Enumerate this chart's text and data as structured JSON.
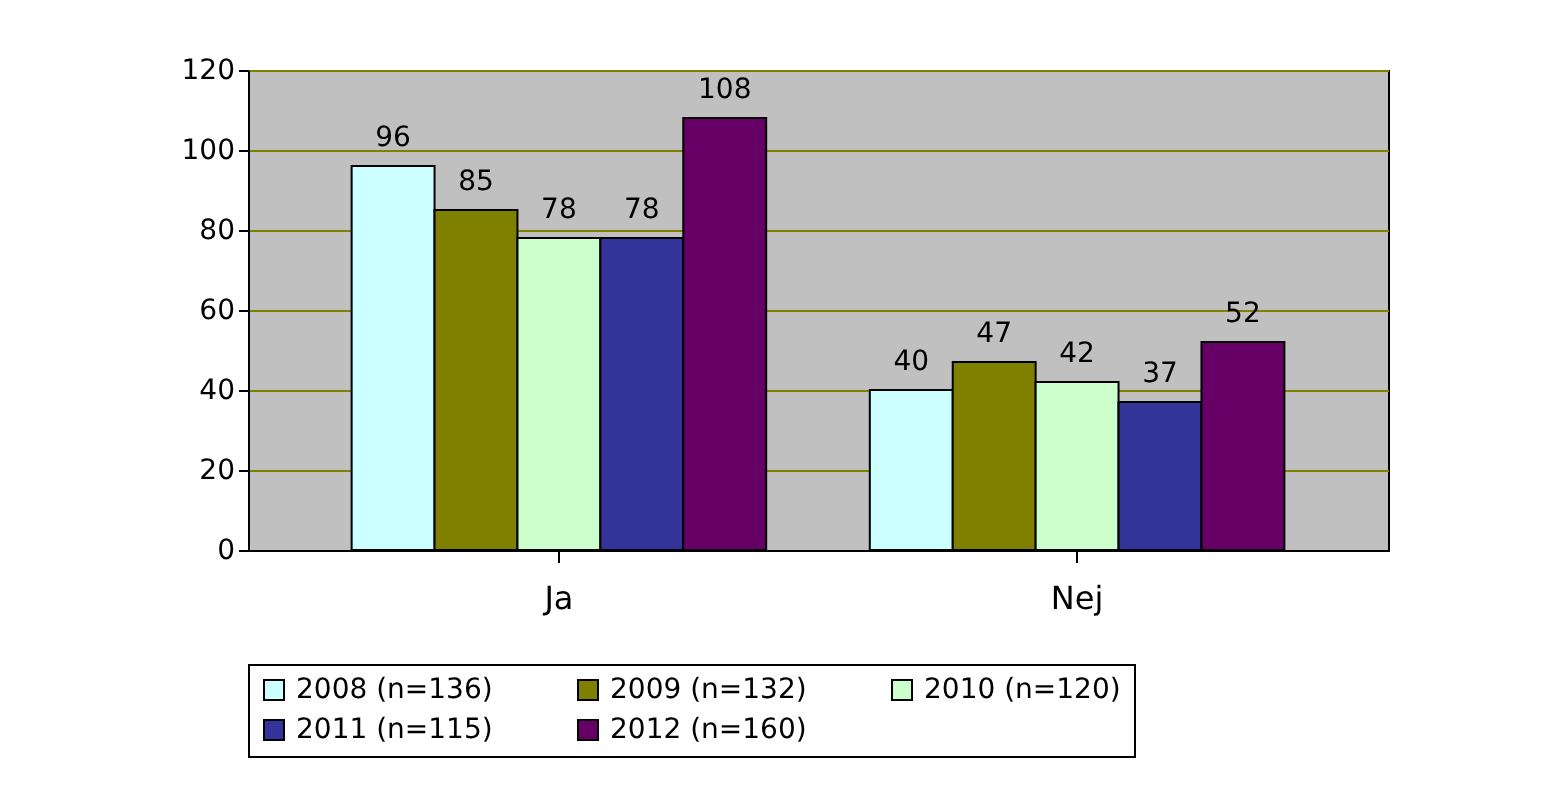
{
  "chart_data": {
    "type": "bar",
    "categories": [
      "Ja",
      "Nej"
    ],
    "series": [
      {
        "name": "2008 (n=136)",
        "color": "#ccffff",
        "values": [
          96,
          40
        ]
      },
      {
        "name": "2009 (n=132)",
        "color": "#808000",
        "values": [
          85,
          47
        ]
      },
      {
        "name": "2010 (n=120)",
        "color": "#ccffcc",
        "values": [
          78,
          42
        ]
      },
      {
        "name": "2011 (n=115)",
        "color": "#333399",
        "values": [
          78,
          37
        ]
      },
      {
        "name": "2012 (n=160)",
        "color": "#660066",
        "values": [
          108,
          52
        ]
      }
    ],
    "ylim": [
      0,
      120
    ],
    "yticks": [
      0,
      20,
      40,
      60,
      80,
      100,
      120
    ],
    "grid": "y",
    "legend": "bottom",
    "data_labels": true
  }
}
